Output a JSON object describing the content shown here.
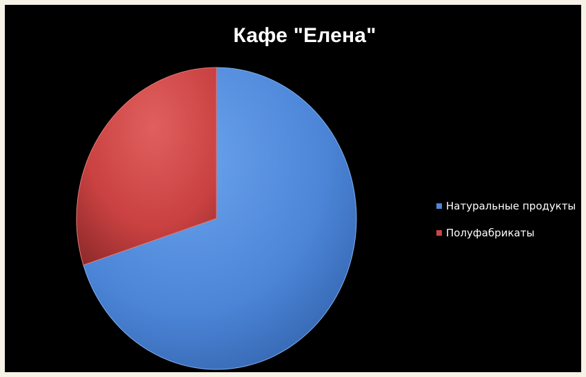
{
  "chart_data": {
    "type": "pie",
    "title": "Кафе \"Елена\"",
    "categories": [
      "Натуральные продукты",
      "Полуфабрикаты"
    ],
    "values": [
      70,
      30
    ],
    "colors": [
      "#4f86d6",
      "#cc4545"
    ],
    "legend": "right"
  }
}
